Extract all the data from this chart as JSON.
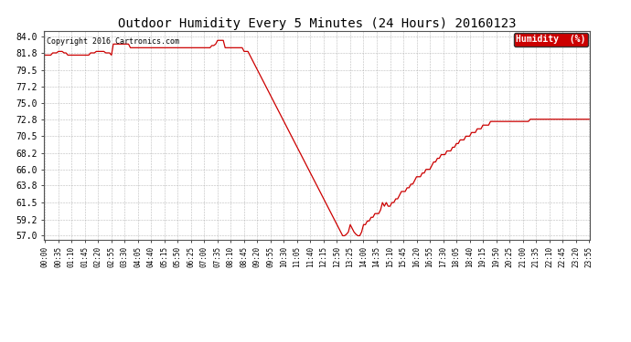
{
  "title": "Outdoor Humidity Every 5 Minutes (24 Hours) 20160123",
  "copyright_text": "Copyright 2016 Cartronics.com",
  "line_color": "#cc0000",
  "bg_color": "#ffffff",
  "grid_color": "#aaaaaa",
  "legend_label": "Humidity  (%)",
  "legend_bg": "#cc0000",
  "legend_text_color": "#ffffff",
  "yticks": [
    57.0,
    59.2,
    61.5,
    63.8,
    66.0,
    68.2,
    70.5,
    72.8,
    75.0,
    77.2,
    79.5,
    81.8,
    84.0
  ],
  "ylim": [
    56.5,
    84.8
  ],
  "humidity_values": [
    81.5,
    81.5,
    81.5,
    81.5,
    81.8,
    81.8,
    81.8,
    82.0,
    82.0,
    82.0,
    81.8,
    81.8,
    81.5,
    81.5,
    81.5,
    81.5,
    81.5,
    81.5,
    81.5,
    81.5,
    81.5,
    81.5,
    81.5,
    81.5,
    81.8,
    81.8,
    81.8,
    82.0,
    82.0,
    82.0,
    82.0,
    82.0,
    81.8,
    81.8,
    81.8,
    81.5,
    83.0,
    83.0,
    83.0,
    83.0,
    83.0,
    83.0,
    83.0,
    83.0,
    83.0,
    82.5,
    82.5,
    82.5,
    82.5,
    82.5,
    82.5,
    82.5,
    82.5,
    82.5,
    82.5,
    82.5,
    82.5,
    82.5,
    82.5,
    82.5,
    82.5,
    82.5,
    82.5,
    82.5,
    82.5,
    82.5,
    82.5,
    82.5,
    82.5,
    82.5,
    82.5,
    82.5,
    82.5,
    82.5,
    82.5,
    82.5,
    82.5,
    82.5,
    82.5,
    82.5,
    82.5,
    82.5,
    82.5,
    82.5,
    82.5,
    82.5,
    82.5,
    82.5,
    82.8,
    82.8,
    83.0,
    83.5,
    83.5,
    83.5,
    83.5,
    82.5,
    82.5,
    82.5,
    82.5,
    82.5,
    82.5,
    82.5,
    82.5,
    82.5,
    82.5,
    82.0,
    82.0,
    82.0,
    81.5,
    81.0,
    80.5,
    80.0,
    79.5,
    79.0,
    78.5,
    78.0,
    77.5,
    77.0,
    76.5,
    76.0,
    75.5,
    75.0,
    74.5,
    74.0,
    73.5,
    73.0,
    72.5,
    72.0,
    71.5,
    71.0,
    70.5,
    70.0,
    69.5,
    69.0,
    68.5,
    68.0,
    67.5,
    67.0,
    66.5,
    66.0,
    65.5,
    65.0,
    64.5,
    64.0,
    63.5,
    63.0,
    62.5,
    62.0,
    61.5,
    61.0,
    60.5,
    60.0,
    59.5,
    59.0,
    58.5,
    58.0,
    57.5,
    57.0,
    57.0,
    57.2,
    57.5,
    58.5,
    58.0,
    57.5,
    57.2,
    57.0,
    57.0,
    57.5,
    58.5,
    58.5,
    59.0,
    59.0,
    59.5,
    59.5,
    60.0,
    60.0,
    60.0,
    60.5,
    61.5,
    61.0,
    61.5,
    61.0,
    61.0,
    61.5,
    61.5,
    62.0,
    62.0,
    62.5,
    63.0,
    63.0,
    63.0,
    63.5,
    63.5,
    64.0,
    64.0,
    64.5,
    65.0,
    65.0,
    65.0,
    65.5,
    65.5,
    66.0,
    66.0,
    66.0,
    66.5,
    67.0,
    67.0,
    67.5,
    67.5,
    68.0,
    68.0,
    68.0,
    68.5,
    68.5,
    68.5,
    69.0,
    69.0,
    69.5,
    69.5,
    70.0,
    70.0,
    70.0,
    70.5,
    70.5,
    70.5,
    71.0,
    71.0,
    71.0,
    71.5,
    71.5,
    71.5,
    72.0,
    72.0,
    72.0,
    72.0,
    72.5,
    72.5,
    72.5,
    72.5,
    72.5,
    72.5,
    72.5,
    72.5,
    72.5,
    72.5,
    72.5,
    72.5,
    72.5,
    72.5,
    72.5,
    72.5,
    72.5,
    72.5,
    72.5,
    72.5,
    72.5,
    72.8,
    72.8,
    72.8,
    72.8,
    72.8,
    72.8,
    72.8,
    72.8,
    72.8,
    72.8,
    72.8,
    72.8,
    72.8,
    72.8,
    72.8,
    72.8,
    72.8,
    72.8,
    72.8,
    72.8,
    72.8,
    72.8,
    72.8,
    72.8,
    72.8,
    72.8,
    72.8,
    72.8,
    72.8,
    72.8,
    72.8,
    72.8
  ],
  "xtick_indices": [
    0,
    7,
    14,
    21,
    28,
    35,
    42,
    49,
    56,
    63,
    70,
    77,
    84,
    91,
    98,
    105,
    112,
    119,
    126,
    133,
    140,
    147,
    154,
    161,
    168,
    175,
    182,
    189,
    196,
    203,
    210,
    217,
    224,
    231,
    238,
    245,
    252,
    259,
    266,
    273,
    280,
    287
  ],
  "xtick_labels": [
    "00:00",
    "00:35",
    "01:10",
    "01:45",
    "02:20",
    "02:55",
    "03:30",
    "04:05",
    "04:40",
    "05:15",
    "05:50",
    "06:25",
    "07:00",
    "07:35",
    "08:10",
    "08:45",
    "09:20",
    "09:55",
    "10:30",
    "11:05",
    "11:40",
    "12:15",
    "12:50",
    "13:25",
    "14:00",
    "14:35",
    "15:10",
    "15:45",
    "16:20",
    "16:55",
    "17:30",
    "18:05",
    "18:40",
    "19:15",
    "19:50",
    "20:25",
    "21:00",
    "21:35",
    "22:10",
    "22:45",
    "23:20",
    "23:55"
  ],
  "title_fontsize": 10,
  "copyright_fontsize": 6,
  "ytick_fontsize": 7,
  "xtick_fontsize": 5.5,
  "line_width": 0.9
}
